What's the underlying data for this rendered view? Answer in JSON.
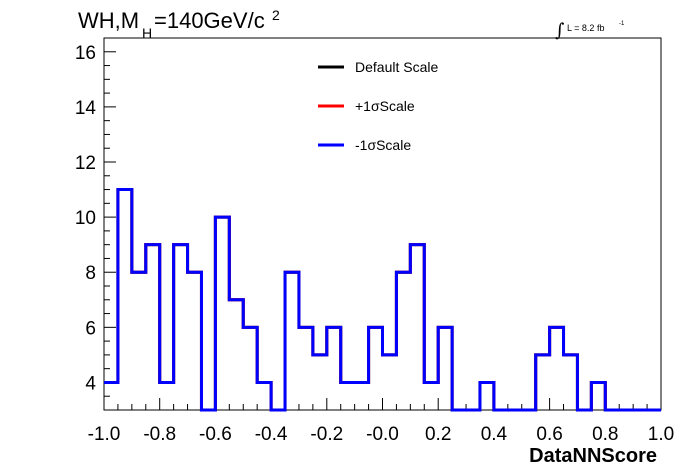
{
  "chart_data": {
    "type": "histogram",
    "title": {
      "prefix": "WH,M",
      "sub": "H",
      "suffix": "=140GeV/c",
      "sup": "2"
    },
    "luminosity": {
      "integral": "∫",
      "text": "L = 8.2 fb",
      "sup": "-1"
    },
    "xlabel": "DataNNScore",
    "ylabel": "",
    "xlim": [
      -1.0,
      1.0
    ],
    "ylim": [
      3.0,
      16.5
    ],
    "x_ticks": [
      "-1.0",
      "-0.8",
      "-0.6",
      "-0.4",
      "-0.2",
      "-0.0",
      "0.2",
      "0.4",
      "0.6",
      "0.8",
      "1.0"
    ],
    "x_tick_values": [
      -1.0,
      -0.8,
      -0.6,
      -0.4,
      -0.2,
      0.0,
      0.2,
      0.4,
      0.6,
      0.8,
      1.0
    ],
    "y_ticks": [
      "4",
      "6",
      "8",
      "10",
      "12",
      "14",
      "16"
    ],
    "y_tick_values": [
      4,
      6,
      8,
      10,
      12,
      14,
      16
    ],
    "bin_edges": [
      -1.0,
      -0.95,
      -0.9,
      -0.85,
      -0.8,
      -0.75,
      -0.7,
      -0.65,
      -0.6,
      -0.55,
      -0.5,
      -0.45,
      -0.4,
      -0.35,
      -0.3,
      -0.25,
      -0.2,
      -0.15,
      -0.1,
      -0.05,
      0.0,
      0.05,
      0.1,
      0.15,
      0.2,
      0.25,
      0.3,
      0.35,
      0.4,
      0.45,
      0.5,
      0.55,
      0.6,
      0.65,
      0.7,
      0.75,
      0.8,
      0.85,
      0.9,
      0.95,
      1.0
    ],
    "series": [
      {
        "name": "Default Scale",
        "color": "#000000",
        "values": [
          4,
          11,
          8,
          9,
          4,
          9,
          8,
          3,
          10,
          7,
          6,
          4,
          3,
          8,
          6,
          5,
          6,
          4,
          4,
          6,
          5,
          8,
          9,
          4,
          6,
          3,
          3,
          4,
          3,
          3,
          3,
          5,
          6,
          5,
          3,
          4,
          3,
          3,
          3,
          3
        ]
      },
      {
        "name": "+1σScale",
        "color": "#ff0000",
        "values": [
          4,
          11,
          8,
          9,
          4,
          9,
          8,
          3,
          10,
          7,
          6,
          4,
          3,
          8,
          6,
          5,
          6,
          4,
          4,
          6,
          5,
          8,
          9,
          4,
          6,
          3,
          3,
          4,
          3,
          3,
          3,
          5,
          6,
          5,
          3,
          4,
          3,
          3,
          3,
          3
        ]
      },
      {
        "name": "-1σScale",
        "color": "#0000ff",
        "values": [
          4,
          11,
          8,
          9,
          4,
          9,
          8,
          3,
          10,
          7,
          6,
          4,
          3,
          8,
          6,
          5,
          6,
          4,
          4,
          6,
          5,
          8,
          9,
          4,
          6,
          3,
          3,
          4,
          3,
          3,
          3,
          5,
          6,
          5,
          3,
          4,
          3,
          3,
          3,
          3
        ]
      }
    ],
    "legend": {
      "position": "top-center"
    },
    "grid": false
  }
}
